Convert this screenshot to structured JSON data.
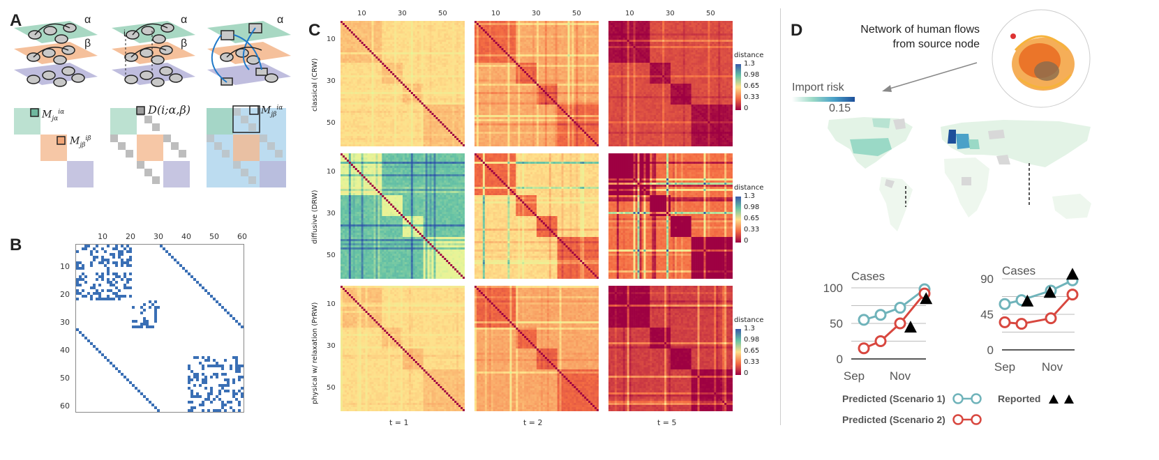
{
  "panels": {
    "a": "A",
    "b": "B",
    "c": "C",
    "d": "D"
  },
  "panelA": {
    "layer_alpha": "α",
    "layer_beta": "β",
    "node_label": "i",
    "m_label1": "M",
    "m_sup1": "iα",
    "m_sub1": "jα",
    "m_sup2": "iβ",
    "m_sub2": "jβ",
    "d_label": "D(i;α,β)",
    "m_sup3": "iα",
    "m_sub3": "jβ",
    "colors": {
      "green": "#9fd4bd",
      "orange": "#f4b990",
      "purple": "#b8b6da",
      "blue": "#bcdcf0",
      "gray": "#bdbdbd",
      "edge": "#1f78c8"
    }
  },
  "panelB": {
    "x_ticks": [
      "10",
      "20",
      "30",
      "40",
      "50",
      "60"
    ],
    "y_ticks": [
      "10",
      "20",
      "30",
      "40",
      "50",
      "60"
    ],
    "n": 60,
    "dot_color": "#3a6fb5"
  },
  "panelC": {
    "top_ticks": [
      "10",
      "30",
      "50"
    ],
    "left_ticks": [
      "10",
      "30",
      "50"
    ],
    "row_labels": [
      "classical (CRW)",
      "diffusive (DRW)",
      "physical w/ relaxation (PrRW)"
    ],
    "col_labels": [
      "t = 1",
      "t = 2",
      "t = 5"
    ],
    "colorbar_title": "distance",
    "colorbar_ticks": [
      "1.3",
      "0.98",
      "0.65",
      "0.33",
      "0"
    ]
  },
  "panelD": {
    "title_line1": "Network of human flows",
    "title_line2": "from source node",
    "import_risk": "Import risk",
    "import_risk_value": "0.15",
    "chart1": {
      "title": "Cases",
      "y_ticks": [
        "100",
        "50",
        "0"
      ],
      "x_ticks": [
        "Sep",
        "Nov"
      ],
      "scenario1": [
        55,
        62,
        72,
        98
      ],
      "scenario2": [
        15,
        25,
        50,
        92
      ],
      "reported": [
        [
          3,
          45
        ],
        [
          4,
          85
        ]
      ],
      "ymax": 100
    },
    "chart2": {
      "title": "Cases",
      "y_ticks": [
        "90",
        "45",
        "0"
      ],
      "x_ticks": [
        "Sep",
        "Nov"
      ],
      "scenario1": [
        58,
        63,
        75,
        88
      ],
      "scenario2": [
        35,
        33,
        40,
        70
      ],
      "reported": [
        [
          1.3,
          62
        ],
        [
          2.6,
          73
        ],
        [
          3.9,
          96
        ]
      ],
      "ymax": 90
    },
    "legend_s1": "Predicted (Scenario 1)",
    "legend_s2": "Predicted (Scenario 2)",
    "legend_rep": "Reported",
    "colors": {
      "s1": "#6fb3ba",
      "s2": "#d8473f",
      "reported": "#000000"
    }
  }
}
